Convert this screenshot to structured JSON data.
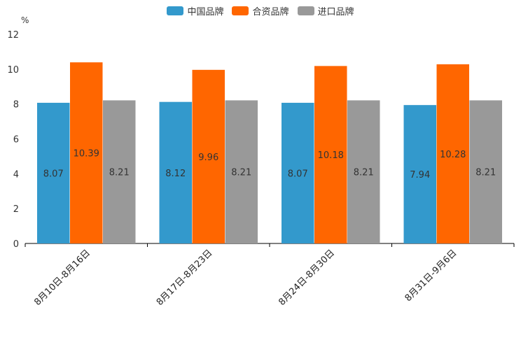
{
  "chart_data": {
    "type": "bar",
    "unit_label": "%",
    "categories": [
      "8月10日-8月16日",
      "8月17日-8月23日",
      "8月24日-8月30日",
      "8月31日-9月6日"
    ],
    "series": [
      {
        "name": "中国品牌",
        "color": "#3399cc",
        "values": [
          8.07,
          8.12,
          8.07,
          7.94
        ],
        "labels": [
          "8.07",
          "8.12",
          "8.07",
          "7.94"
        ]
      },
      {
        "name": "合资品牌",
        "color": "#ff6600",
        "values": [
          10.39,
          9.96,
          10.18,
          10.28
        ],
        "labels": [
          "10.39",
          "9.96",
          "10.18",
          "10.28"
        ]
      },
      {
        "name": "进口品牌",
        "color": "#999999",
        "values": [
          8.21,
          8.21,
          8.21,
          8.21
        ],
        "labels": [
          "8.21",
          "8.21",
          "8.21",
          "8.21"
        ]
      }
    ],
    "yticks": [
      "0",
      "2",
      "4",
      "6",
      "8",
      "10",
      "12"
    ],
    "ylim": [
      0,
      12
    ],
    "legend_position": "top-center",
    "grid": false
  }
}
